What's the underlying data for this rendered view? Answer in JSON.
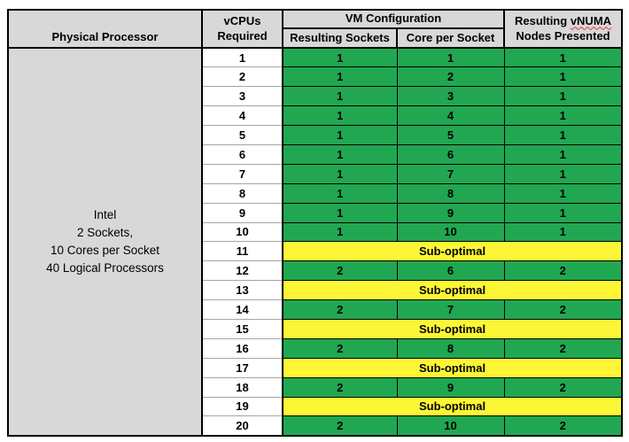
{
  "header": {
    "col_physical": "Physical Processor",
    "col_vcpus_line1": "vCPUs",
    "col_vcpus_line2": "Required",
    "col_vm_config": "VM Configuration",
    "col_sockets": "Resulting Sockets",
    "col_cores": "Core per Socket",
    "col_vnuma_prefix": "Resulting ",
    "col_vnuma_word": "vNUMA",
    "col_vnuma_line2": "Nodes Presented"
  },
  "physical_processor": {
    "lines": [
      "Intel",
      "2 Sockets,",
      "10 Cores per Socket",
      "40 Logical Processors"
    ]
  },
  "colors": {
    "green": "#21A751",
    "yellow": "#FCF637",
    "gray": "#D8D8D8",
    "red": "#E03C31"
  },
  "rows": [
    {
      "vcpus": "1",
      "sockets": "1",
      "cores": "1",
      "vnuma": "1"
    },
    {
      "vcpus": "2",
      "sockets": "1",
      "cores": "2",
      "vnuma": "1"
    },
    {
      "vcpus": "3",
      "sockets": "1",
      "cores": "3",
      "vnuma": "1"
    },
    {
      "vcpus": "4",
      "sockets": "1",
      "cores": "4",
      "vnuma": "1"
    },
    {
      "vcpus": "5",
      "sockets": "1",
      "cores": "5",
      "vnuma": "1"
    },
    {
      "vcpus": "6",
      "sockets": "1",
      "cores": "6",
      "vnuma": "1"
    },
    {
      "vcpus": "7",
      "sockets": "1",
      "cores": "7",
      "vnuma": "1"
    },
    {
      "vcpus": "8",
      "sockets": "1",
      "cores": "8",
      "vnuma": "1"
    },
    {
      "vcpus": "9",
      "sockets": "1",
      "cores": "9",
      "vnuma": "1"
    },
    {
      "vcpus": "10",
      "sockets": "1",
      "cores": "10",
      "vnuma": "1"
    },
    {
      "vcpus": "11",
      "label": "Sub-optimal"
    },
    {
      "vcpus": "12",
      "sockets": "2",
      "cores": "6",
      "vnuma": "2"
    },
    {
      "vcpus": "13",
      "label": "Sub-optimal"
    },
    {
      "vcpus": "14",
      "sockets": "2",
      "cores": "7",
      "vnuma": "2"
    },
    {
      "vcpus": "15",
      "label": "Sub-optimal"
    },
    {
      "vcpus": "16",
      "sockets": "2",
      "cores": "8",
      "vnuma": "2"
    },
    {
      "vcpus": "17",
      "label": "Sub-optimal"
    },
    {
      "vcpus": "18",
      "sockets": "2",
      "cores": "9",
      "vnuma": "2"
    },
    {
      "vcpus": "19",
      "label": "Sub-optimal"
    },
    {
      "vcpus": "20",
      "sockets": "2",
      "cores": "10",
      "vnuma": "2"
    }
  ]
}
